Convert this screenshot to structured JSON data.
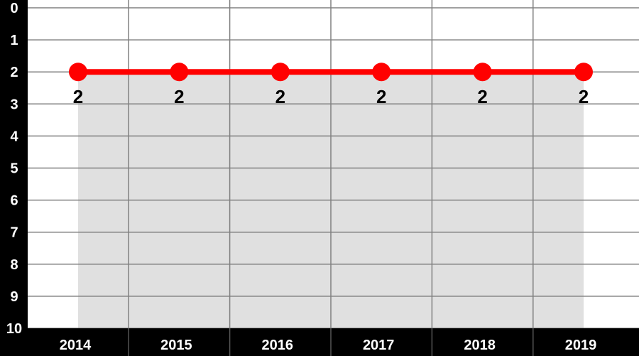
{
  "chart_data": {
    "type": "line",
    "title": "",
    "xlabel": "",
    "ylabel": "",
    "categories": [
      "2014",
      "2015",
      "2016",
      "2017",
      "2018",
      "2019"
    ],
    "series": [
      {
        "values": [
          2,
          2,
          2,
          2,
          2,
          2
        ],
        "color": "#ff0000",
        "fill": "#e0e0e0"
      }
    ],
    "data_labels": [
      "2",
      "2",
      "2",
      "2",
      "2",
      "2"
    ],
    "yticks": [
      "0",
      "1",
      "2",
      "3",
      "4",
      "5",
      "6",
      "7",
      "8",
      "9",
      "10"
    ],
    "ylim": [
      0,
      10
    ],
    "y_inverted": true,
    "grid": true,
    "axis_band_color": "#000000",
    "gridline_color": "#808080"
  }
}
